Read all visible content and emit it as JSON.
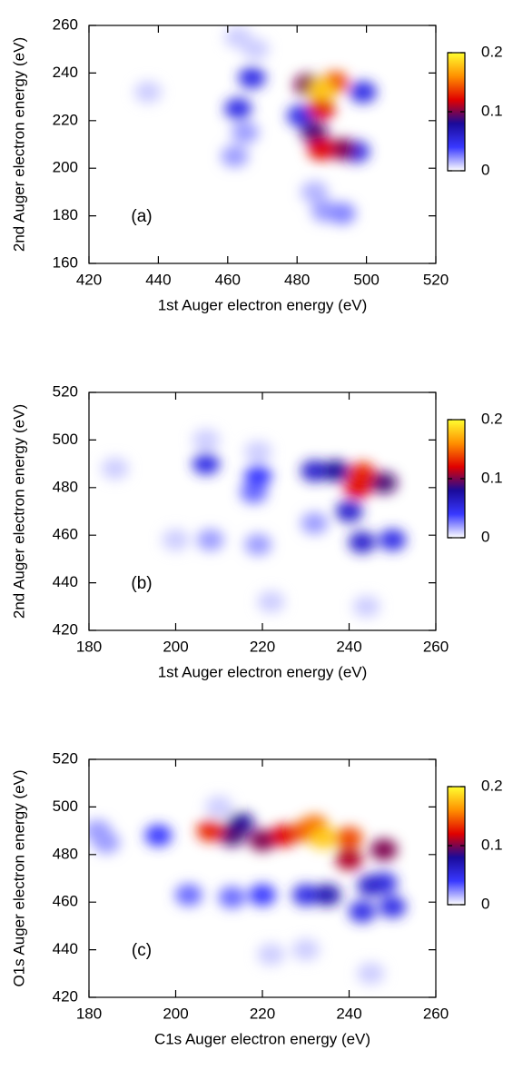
{
  "chart_data": [
    {
      "type": "heatmap",
      "annotation": "(a)",
      "xlabel": "1st Auger electron energy (eV)",
      "ylabel": "2nd Auger electron energy (eV)",
      "xlim": [
        420,
        520
      ],
      "xticks": [
        420,
        440,
        460,
        480,
        500,
        520
      ],
      "ylim": [
        160,
        260
      ],
      "yticks": [
        160,
        180,
        200,
        220,
        240,
        260
      ],
      "clim": [
        0,
        0.2
      ],
      "cticks": [
        0,
        0.1,
        0.2
      ],
      "colormap": [
        "#ffffff",
        "#3838ff",
        "#1a0a9a",
        "#e00000",
        "#ff9000",
        "#ffff30"
      ],
      "x": [
        437,
        468,
        463,
        485,
        462,
        465,
        488,
        493,
        481,
        497,
        499,
        463,
        467,
        485,
        493,
        483,
        487,
        487,
        491,
        487
      ],
      "y": [
        232,
        250,
        255,
        190,
        205,
        215,
        182,
        181,
        222,
        207,
        232,
        225,
        238,
        215,
        208,
        235,
        225,
        208,
        236,
        233
      ],
      "values": [
        0.01,
        0.01,
        0.01,
        0.015,
        0.02,
        0.02,
        0.02,
        0.025,
        0.05,
        0.05,
        0.05,
        0.05,
        0.05,
        0.09,
        0.1,
        0.1,
        0.12,
        0.12,
        0.14,
        0.18
      ]
    },
    {
      "type": "heatmap",
      "annotation": "(b)",
      "xlabel": "1st Auger electron energy (eV)",
      "ylabel": "2nd Auger electron energy (eV)",
      "xlim": [
        180,
        260
      ],
      "xticks": [
        180,
        200,
        220,
        240,
        260
      ],
      "ylim": [
        420,
        520
      ],
      "yticks": [
        420,
        440,
        460,
        480,
        500,
        520
      ],
      "clim": [
        0,
        0.2
      ],
      "cticks": [
        0,
        0.1,
        0.2
      ],
      "colormap": [
        "#ffffff",
        "#3838ff",
        "#1a0a9a",
        "#e00000",
        "#ff9000",
        "#ffff30"
      ],
      "x": [
        186,
        207,
        219,
        200,
        244,
        222,
        208,
        219,
        232,
        218,
        219,
        207,
        250,
        232,
        240,
        243,
        237,
        248,
        242,
        243
      ],
      "y": [
        488,
        500,
        495,
        458,
        430,
        432,
        458,
        456,
        465,
        478,
        485,
        490,
        458,
        487,
        470,
        457,
        487,
        482,
        480,
        486
      ],
      "values": [
        0.01,
        0.01,
        0.01,
        0.01,
        0.01,
        0.01,
        0.02,
        0.02,
        0.02,
        0.03,
        0.04,
        0.05,
        0.05,
        0.06,
        0.06,
        0.06,
        0.08,
        0.09,
        0.12,
        0.13
      ]
    },
    {
      "type": "heatmap",
      "annotation": "(c)",
      "xlabel": "C1s Auger electron energy (eV)",
      "ylabel": "O1s Auger electron energy (eV)",
      "xlim": [
        180,
        260
      ],
      "xticks": [
        180,
        200,
        220,
        240,
        260
      ],
      "ylim": [
        420,
        520
      ],
      "yticks": [
        420,
        440,
        460,
        480,
        500,
        520
      ],
      "clim": [
        0,
        0.2
      ],
      "cticks": [
        0,
        0.1,
        0.2
      ],
      "colormap": [
        "#ffffff",
        "#3838ff",
        "#1a0a9a",
        "#e00000",
        "#ff9000",
        "#ffff30"
      ],
      "x": [
        210,
        230,
        245,
        222,
        182,
        184,
        203,
        213,
        196,
        220,
        230,
        243,
        250,
        248,
        245,
        235,
        215,
        213,
        220,
        248,
        240,
        225,
        208,
        230,
        240,
        232,
        234
      ],
      "y": [
        500,
        440,
        430,
        438,
        490,
        485,
        463,
        462,
        488,
        463,
        463,
        456,
        458,
        468,
        467,
        463,
        493,
        488,
        486,
        482,
        478,
        488,
        490,
        490,
        487,
        492,
        487
      ],
      "values": [
        0.01,
        0.01,
        0.01,
        0.01,
        0.02,
        0.02,
        0.03,
        0.03,
        0.04,
        0.04,
        0.05,
        0.05,
        0.05,
        0.05,
        0.06,
        0.07,
        0.08,
        0.09,
        0.1,
        0.1,
        0.11,
        0.12,
        0.13,
        0.14,
        0.14,
        0.15,
        0.18
      ]
    }
  ]
}
